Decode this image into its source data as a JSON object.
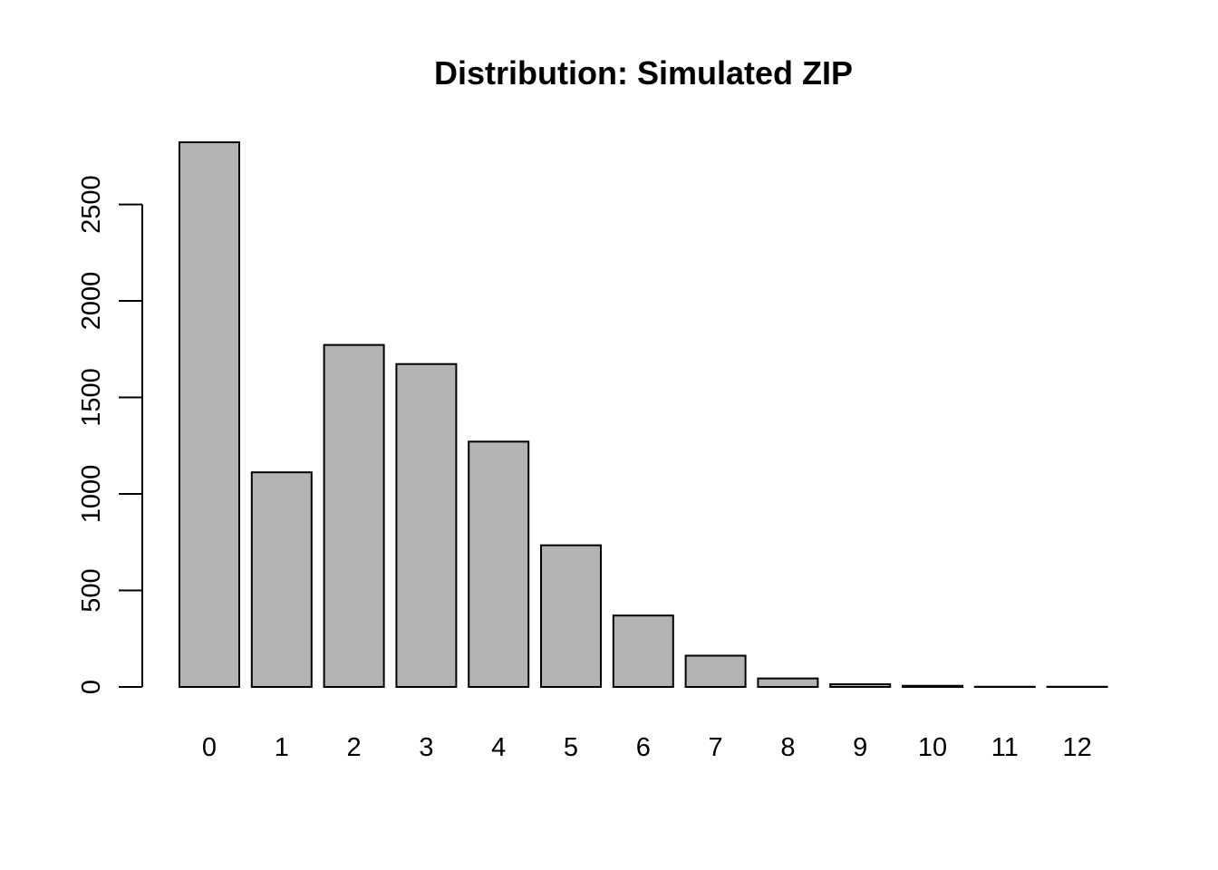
{
  "chart_data": {
    "type": "bar",
    "title": "Distribution: Simulated ZIP",
    "xlabel": "",
    "ylabel": "",
    "categories": [
      "0",
      "1",
      "2",
      "3",
      "4",
      "5",
      "6",
      "7",
      "8",
      "9",
      "10",
      "11",
      "12"
    ],
    "values": [
      2822,
      1112,
      1772,
      1673,
      1271,
      734,
      370,
      162,
      44,
      14,
      6,
      1,
      1
    ],
    "ylim": [
      0,
      2822
    ],
    "yticks": [
      0,
      500,
      1000,
      1500,
      2000,
      2500
    ],
    "grid": false,
    "bar_color": "#b3b3b3",
    "border_color": "#000000"
  }
}
